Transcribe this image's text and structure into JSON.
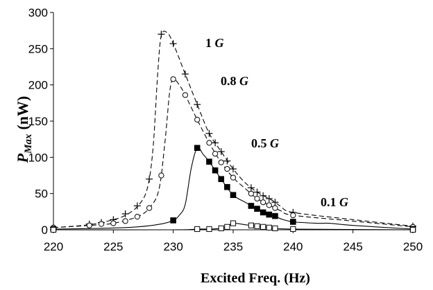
{
  "chart_data": {
    "type": "line",
    "xlabel": "Excited Freq. (Hz)",
    "ylabel": {
      "main": "P",
      "subscript": "Max",
      "unit": "(nW)"
    },
    "xlim": [
      220,
      250
    ],
    "ylim": [
      0,
      300
    ],
    "xticks": [
      "220",
      "225",
      "230",
      "235",
      "240",
      "245",
      "250"
    ],
    "yticks": [
      "0",
      "50",
      "100",
      "150",
      "200",
      "250",
      "300"
    ],
    "grid": false,
    "legend": "none",
    "series": [
      {
        "annotation": "1 G",
        "annotation_value": "1",
        "annotation_unit": "G",
        "marker": "plus",
        "line": "dashed",
        "points": [
          [
            220,
            3
          ],
          [
            223,
            8
          ],
          [
            224,
            10
          ],
          [
            225,
            14
          ],
          [
            226,
            22
          ],
          [
            227,
            33
          ],
          [
            228,
            70
          ],
          [
            229,
            270
          ],
          [
            230,
            257
          ],
          [
            231,
            215
          ],
          [
            232,
            173
          ],
          [
            233,
            133
          ],
          [
            233.5,
            120
          ],
          [
            234,
            108
          ],
          [
            234.5,
            95
          ],
          [
            235,
            84
          ],
          [
            236.5,
            58
          ],
          [
            237,
            52
          ],
          [
            237.5,
            47
          ],
          [
            238,
            43
          ],
          [
            238.5,
            38
          ],
          [
            240,
            24
          ],
          [
            250,
            5
          ]
        ],
        "curve": [
          [
            220,
            3
          ],
          [
            223,
            7
          ],
          [
            225,
            14
          ],
          [
            226,
            20
          ],
          [
            227,
            32
          ],
          [
            227.8,
            55
          ],
          [
            228.3,
            110
          ],
          [
            228.7,
            215
          ],
          [
            229,
            268
          ],
          [
            229.5,
            272
          ],
          [
            230,
            257
          ],
          [
            231,
            215
          ],
          [
            232,
            173
          ],
          [
            233,
            133
          ],
          [
            234,
            108
          ],
          [
            235,
            84
          ],
          [
            236,
            65
          ],
          [
            237,
            52
          ],
          [
            238,
            43
          ],
          [
            238.5,
            38
          ],
          [
            239,
            32
          ],
          [
            240,
            24
          ],
          [
            245,
            14
          ],
          [
            250,
            5
          ]
        ]
      },
      {
        "annotation": "0.8 G",
        "annotation_value": "0.8",
        "annotation_unit": "G",
        "marker": "open-circle",
        "line": "dashed",
        "points": [
          [
            220,
            3
          ],
          [
            223,
            6
          ],
          [
            224,
            8
          ],
          [
            225,
            9
          ],
          [
            226,
            12
          ],
          [
            227,
            18
          ],
          [
            228,
            30
          ],
          [
            229,
            75
          ],
          [
            230,
            208
          ],
          [
            231,
            186
          ],
          [
            232,
            152
          ],
          [
            233,
            120
          ],
          [
            233.5,
            105
          ],
          [
            234,
            93
          ],
          [
            234.5,
            84
          ],
          [
            235,
            72
          ],
          [
            236.5,
            50
          ],
          [
            237,
            43
          ],
          [
            237.5,
            38
          ],
          [
            238,
            34
          ],
          [
            238.5,
            30
          ],
          [
            240,
            20
          ],
          [
            250,
            4
          ]
        ],
        "curve": [
          [
            220,
            3
          ],
          [
            223,
            6
          ],
          [
            225,
            9
          ],
          [
            227,
            18
          ],
          [
            228,
            30
          ],
          [
            228.8,
            55
          ],
          [
            229.3,
            120
          ],
          [
            229.7,
            190
          ],
          [
            230,
            208
          ],
          [
            230.5,
            200
          ],
          [
            231,
            186
          ],
          [
            232,
            152
          ],
          [
            233,
            120
          ],
          [
            234,
            93
          ],
          [
            235,
            72
          ],
          [
            236,
            57
          ],
          [
            237,
            43
          ],
          [
            238,
            34
          ],
          [
            238.5,
            30
          ],
          [
            239,
            26
          ],
          [
            240,
            20
          ],
          [
            245,
            12
          ],
          [
            250,
            4
          ]
        ]
      },
      {
        "annotation": "0.5 G",
        "annotation_value": "0.5",
        "annotation_unit": "G",
        "marker": "filled-square",
        "line": "solid",
        "points": [
          [
            220,
            1
          ],
          [
            230,
            13
          ],
          [
            232,
            113
          ],
          [
            233,
            94
          ],
          [
            233.5,
            82
          ],
          [
            234,
            70
          ],
          [
            234.5,
            59
          ],
          [
            235,
            48
          ],
          [
            236.5,
            33
          ],
          [
            237,
            29
          ],
          [
            237.5,
            24
          ],
          [
            238,
            21
          ],
          [
            238.5,
            19
          ],
          [
            240,
            11
          ],
          [
            250,
            1
          ]
        ],
        "curve": [
          [
            220,
            1
          ],
          [
            224,
            2
          ],
          [
            227,
            4
          ],
          [
            229,
            8
          ],
          [
            230,
            13
          ],
          [
            230.5,
            20
          ],
          [
            231,
            35
          ],
          [
            231.5,
            85
          ],
          [
            232,
            113
          ],
          [
            232.5,
            104
          ],
          [
            233,
            94
          ],
          [
            234,
            70
          ],
          [
            235,
            48
          ],
          [
            236,
            38
          ],
          [
            237,
            29
          ],
          [
            238,
            21
          ],
          [
            238.5,
            19
          ],
          [
            239,
            15
          ],
          [
            240,
            11
          ],
          [
            242,
            9
          ],
          [
            243,
            9
          ],
          [
            245,
            6
          ],
          [
            250,
            1
          ]
        ]
      },
      {
        "annotation": "0.1 G",
        "annotation_value": "0.1",
        "annotation_unit": "G",
        "marker": "open-square",
        "line": "solid",
        "points": [
          [
            220,
            0
          ],
          [
            232,
            1
          ],
          [
            233,
            1
          ],
          [
            234,
            2
          ],
          [
            234.5,
            4
          ],
          [
            235,
            9
          ],
          [
            236.5,
            6
          ],
          [
            237,
            5
          ],
          [
            237.5,
            4
          ],
          [
            238,
            3
          ],
          [
            238.5,
            2
          ],
          [
            240,
            1
          ],
          [
            250,
            0
          ]
        ],
        "curve": [
          [
            220,
            0
          ],
          [
            230,
            0
          ],
          [
            232,
            1
          ],
          [
            233,
            1
          ],
          [
            234,
            2
          ],
          [
            234.5,
            4
          ],
          [
            235,
            9
          ],
          [
            236,
            7
          ],
          [
            237,
            5
          ],
          [
            238,
            3
          ],
          [
            240,
            1
          ],
          [
            250,
            0
          ]
        ]
      }
    ]
  }
}
